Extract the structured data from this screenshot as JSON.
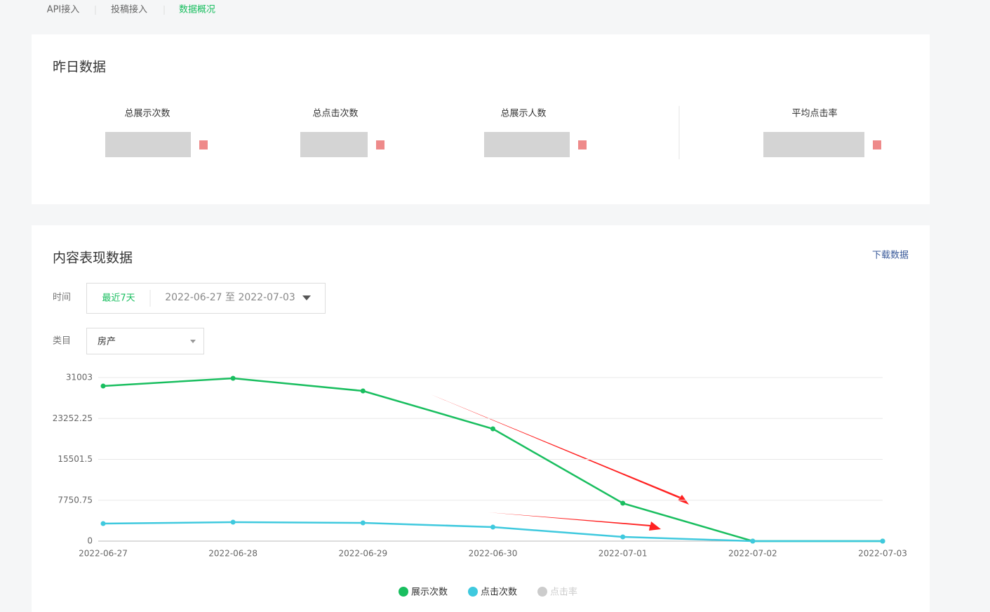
{
  "tabs": [
    "API接入",
    "投稿接入",
    "数据概况"
  ],
  "yesterday": {
    "title": "昨日数据",
    "metrics": [
      "总展示次数",
      "总点击次数",
      "总展示人数",
      "平均点击率"
    ]
  },
  "performance": {
    "title": "内容表现数据",
    "download": "下载数据",
    "time_label": "时间",
    "range_preset": "最近7天",
    "range": "2022-06-27 至 2022-07-03",
    "category_label": "类目",
    "category": "房产"
  },
  "chart_data": {
    "type": "line",
    "categories": [
      "2022-06-27",
      "2022-06-28",
      "2022-06-29",
      "2022-06-30",
      "2022-07-01",
      "2022-07-02",
      "2022-07-03"
    ],
    "series": [
      {
        "name": "展示次数",
        "color": "#19be5f",
        "values": [
          29400,
          30870,
          28475,
          21290,
          7185,
          0,
          0
        ]
      },
      {
        "name": "点击次数",
        "color": "#3fc9de",
        "values": [
          3327,
          3593,
          3460,
          2661,
          798,
          0,
          0
        ]
      },
      {
        "name": "点击率",
        "color": "#cccccc",
        "hidden": true,
        "values": [
          null,
          null,
          null,
          null,
          null,
          null,
          null
        ]
      }
    ],
    "ylim": [
      0,
      31003
    ],
    "yticks": [
      0,
      7750.75,
      15501.5,
      23252.25,
      31003
    ],
    "grid": true,
    "legend": "bottom"
  }
}
